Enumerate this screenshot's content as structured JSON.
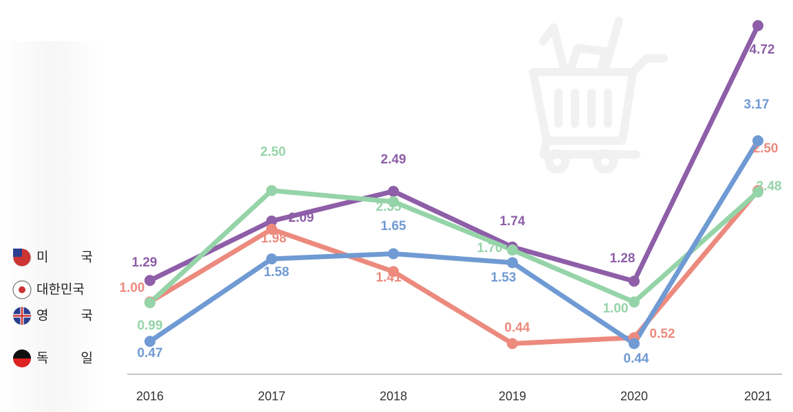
{
  "chart_data": {
    "type": "line",
    "categories": [
      "2016",
      "2017",
      "2018",
      "2019",
      "2020",
      "2021"
    ],
    "ylim": [
      0,
      5
    ],
    "series": [
      {
        "name": "미국",
        "color": "#8e5ea8",
        "values": [
          1.29,
          2.09,
          2.49,
          1.74,
          1.28,
          4.72
        ],
        "value_labels": [
          "1.29",
          "2.09",
          "2.49",
          "1.74",
          "1.28",
          "4.72"
        ]
      },
      {
        "name": "대한민국",
        "color": "#ec8a7e",
        "values": [
          1.0,
          1.98,
          1.41,
          0.44,
          0.52,
          2.5
        ],
        "value_labels": [
          "1.00",
          "1.98",
          "1.41",
          "0.44",
          "0.52",
          "2.50"
        ]
      },
      {
        "name": "영국",
        "color": "#95d4a8",
        "values": [
          0.99,
          2.5,
          2.35,
          1.7,
          1.0,
          2.48
        ],
        "value_labels": [
          "0.99",
          "2.50",
          "2.35",
          "1.70",
          "1.00",
          "2.48"
        ]
      },
      {
        "name": "독일",
        "color": "#6f9ad3",
        "values": [
          0.47,
          1.58,
          1.65,
          1.53,
          0.44,
          3.17
        ],
        "value_labels": [
          "0.47",
          "1.58",
          "1.65",
          "1.53",
          "0.44",
          "3.17"
        ]
      }
    ]
  }
}
